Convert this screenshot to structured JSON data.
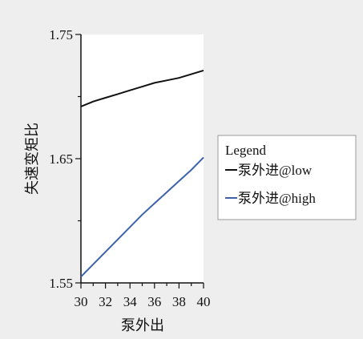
{
  "chart_data": {
    "type": "line",
    "title": "",
    "xlabel": "泵外出",
    "ylabel": "失速变矩比",
    "xlim": [
      30,
      40
    ],
    "ylim": [
      1.55,
      1.75
    ],
    "x_ticks": [
      "30",
      "32",
      "34",
      "36",
      "38",
      "40"
    ],
    "y_ticks": [
      "1.55",
      "1.65",
      "1.75"
    ],
    "grid": false,
    "legend": {
      "title": "Legend",
      "placement": "right"
    },
    "series": [
      {
        "name": "泵外进@low",
        "color": "#111111",
        "x": [
          30,
          31,
          32,
          33,
          34,
          35,
          36,
          37,
          38,
          39,
          40
        ],
        "y": [
          1.692,
          1.696,
          1.699,
          1.702,
          1.705,
          1.708,
          1.711,
          1.713,
          1.715,
          1.718,
          1.721
        ]
      },
      {
        "name": "泵外进@high",
        "color": "#3e62aa",
        "x": [
          30,
          31,
          32,
          33,
          34,
          35,
          36,
          37,
          38,
          39,
          40
        ],
        "y": [
          1.555,
          1.565,
          1.575,
          1.585,
          1.595,
          1.605,
          1.614,
          1.623,
          1.632,
          1.641,
          1.651
        ]
      }
    ]
  }
}
